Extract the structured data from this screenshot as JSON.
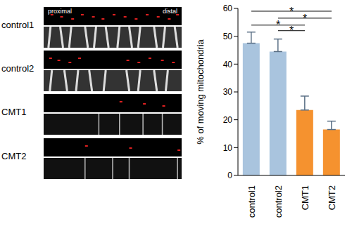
{
  "chart_data": {
    "type": "bar",
    "categories": [
      "control1",
      "control2",
      "CMT1",
      "CMT2"
    ],
    "values": [
      47.5,
      44.5,
      23.5,
      16.5
    ],
    "errors": [
      4,
      4.5,
      5,
      3
    ],
    "colors": [
      "#a9c4de",
      "#a9c4de",
      "#f5922f",
      "#f5922f"
    ],
    "ylabel": "% of moving mitochondria",
    "ylim": [
      0,
      60
    ],
    "yticks": [
      0,
      10,
      20,
      30,
      40,
      50,
      60
    ],
    "annotations": [
      {
        "text": "*",
        "from": "control1",
        "to": "CMT2"
      },
      {
        "text": "*",
        "from": "control2",
        "to": "CMT2"
      },
      {
        "text": "*",
        "from": "control1",
        "to": "CMT1"
      },
      {
        "text": "*",
        "from": "control2",
        "to": "CMT1"
      }
    ]
  },
  "images": {
    "rows": [
      "control1",
      "control2",
      "CMT1",
      "CMT2"
    ],
    "left_label": "proximal",
    "right_label": "distal"
  }
}
